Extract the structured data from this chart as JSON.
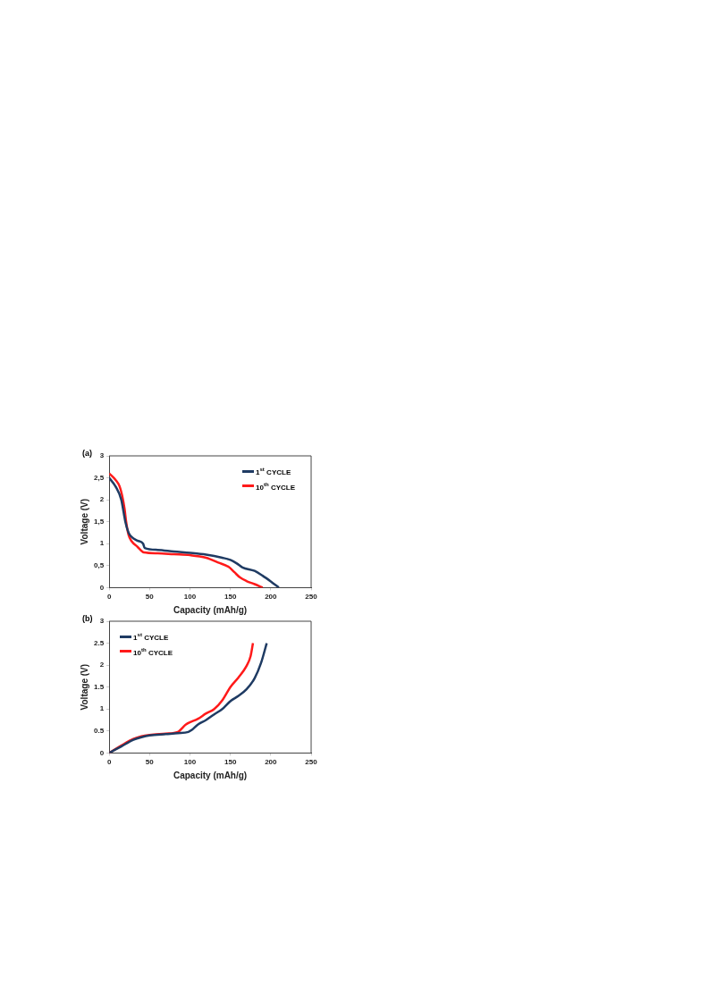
{
  "chart_data": [
    {
      "type": "line",
      "title": "(a)",
      "xlabel": "Capacity (mAh/g)",
      "ylabel": "Voltage (V)",
      "xlim": [
        0,
        250
      ],
      "ylim": [
        0,
        3
      ],
      "xticks": [
        0,
        50,
        100,
        150,
        200,
        250
      ],
      "yticks": [
        0,
        {
          "value": 0.5,
          "label": "0,5"
        },
        1,
        {
          "value": 1.5,
          "label": "1,5"
        },
        2,
        {
          "value": 2.5,
          "label": "2,5"
        },
        3
      ],
      "grid": false,
      "legend": "top right",
      "marker": "none",
      "line_style": "solid",
      "series": [
        {
          "name": "1$^{st}$ CYCLE",
          "color": "#1f3b63",
          "x": [
            0,
            8,
            15,
            18,
            20,
            24,
            28,
            35,
            42,
            44,
            60,
            80,
            100,
            120,
            140,
            150,
            158,
            165,
            180,
            190,
            200,
            210
          ],
          "values": [
            2.5,
            2.3,
            2.0,
            1.7,
            1.5,
            1.25,
            1.15,
            1.07,
            1.0,
            0.9,
            0.86,
            0.82,
            0.79,
            0.75,
            0.68,
            0.63,
            0.55,
            0.46,
            0.38,
            0.27,
            0.14,
            0
          ]
        },
        {
          "name": "10$^{th}$ CYCLE",
          "color": "#ff1a1a",
          "x": [
            0,
            8,
            13,
            16,
            19,
            21,
            24,
            28,
            35,
            43,
            60,
            80,
            100,
            120,
            135,
            148,
            155,
            162,
            170,
            180,
            190
          ],
          "values": [
            2.6,
            2.45,
            2.3,
            2.1,
            1.8,
            1.5,
            1.2,
            1.05,
            0.93,
            0.8,
            0.78,
            0.76,
            0.74,
            0.68,
            0.57,
            0.47,
            0.35,
            0.23,
            0.15,
            0.08,
            0
          ]
        }
      ]
    },
    {
      "type": "line",
      "title": "(b)",
      "xlabel": "Capacity (mAh/g)",
      "ylabel": "Voltage (V)",
      "xlim": [
        0,
        250
      ],
      "ylim": [
        0,
        3
      ],
      "xticks": [
        0,
        50,
        100,
        150,
        200,
        250
      ],
      "yticks": [
        0,
        0.5,
        1,
        1.5,
        2,
        2.5,
        3
      ],
      "grid": false,
      "legend": "top left",
      "marker": "none",
      "line_style": "solid",
      "series": [
        {
          "name": "1$^{st}$ CYCLE",
          "color": "#1f3b63",
          "x": [
            0,
            15,
            30,
            40,
            50,
            70,
            85,
            98,
            102,
            110,
            120,
            130,
            140,
            150,
            160,
            170,
            180,
            188,
            195
          ],
          "values": [
            0,
            0.15,
            0.3,
            0.36,
            0.4,
            0.43,
            0.45,
            0.48,
            0.52,
            0.65,
            0.75,
            0.88,
            1.0,
            1.18,
            1.3,
            1.45,
            1.7,
            2.05,
            2.5
          ]
        },
        {
          "name": "10$^{th}$ CYCLE",
          "color": "#ff1a1a",
          "x": [
            0,
            15,
            30,
            40,
            50,
            70,
            85,
            95,
            110,
            120,
            130,
            140,
            150,
            160,
            170,
            175,
            178
          ],
          "values": [
            0,
            0.17,
            0.32,
            0.38,
            0.41,
            0.44,
            0.48,
            0.65,
            0.78,
            0.9,
            1.0,
            1.2,
            1.5,
            1.72,
            1.98,
            2.2,
            2.5
          ]
        }
      ]
    }
  ]
}
